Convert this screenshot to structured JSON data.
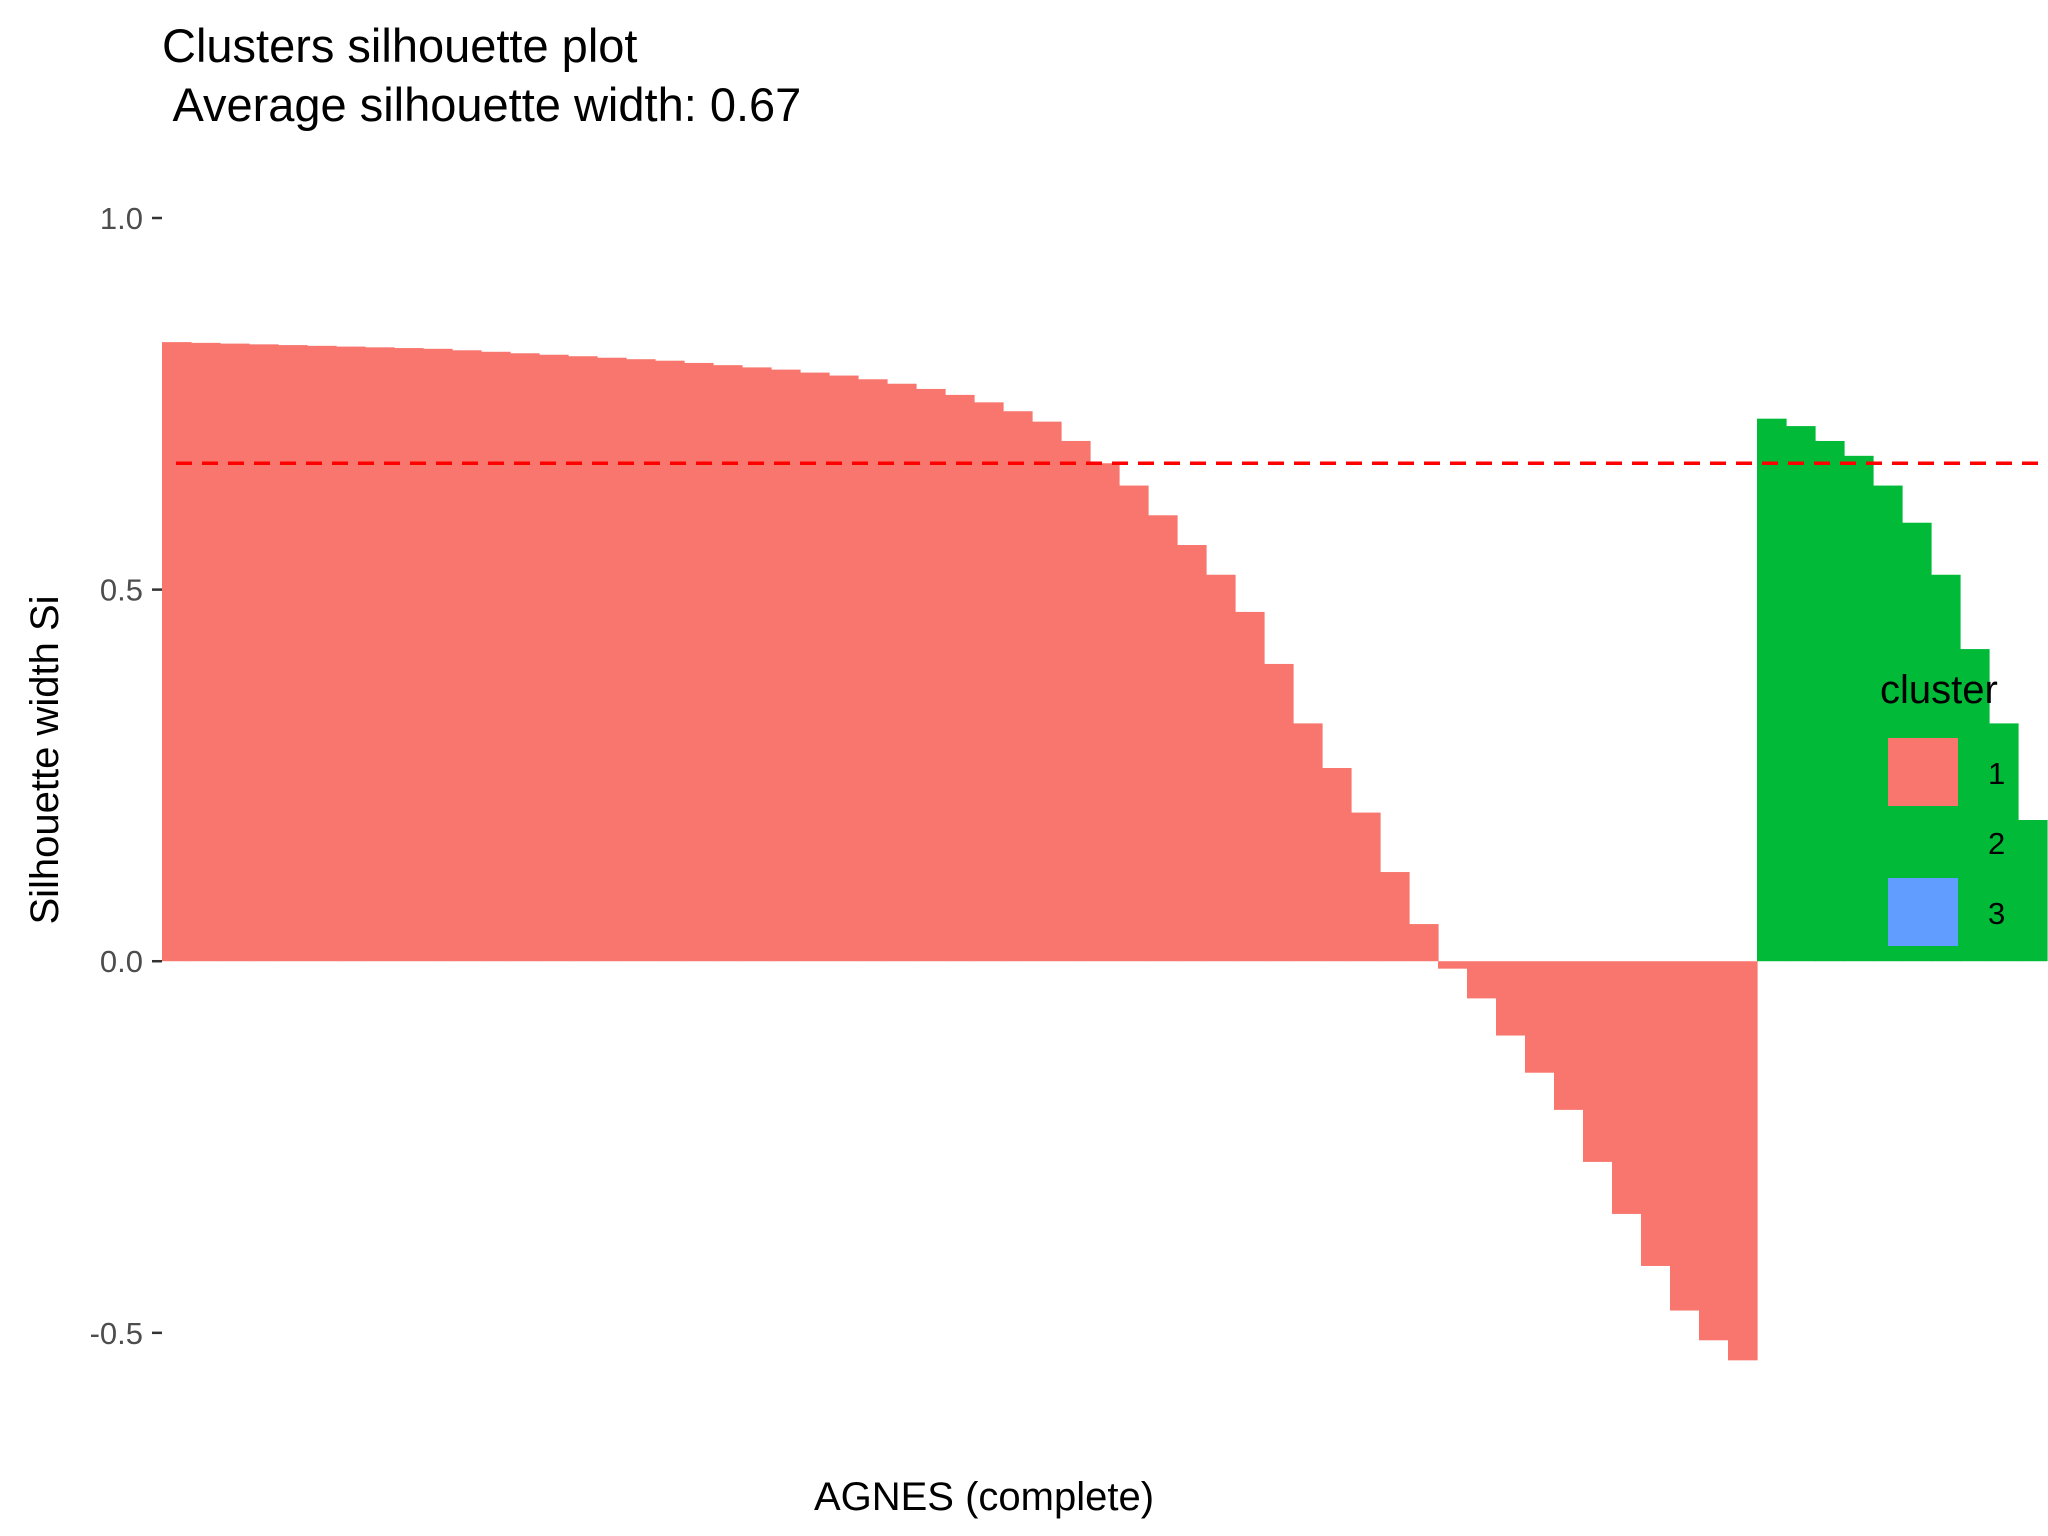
{
  "chart_data": {
    "type": "bar",
    "title": "Clusters silhouette plot",
    "subtitle": " Average silhouette width: 0.67",
    "xlabel": "AGNES (complete)",
    "ylabel": "Silhouette width Si",
    "ylim": [
      -0.55,
      1.0
    ],
    "yticks": [
      1.0,
      0.5,
      0.0,
      -0.5
    ],
    "ytick_labels": [
      "1.0",
      "0.5",
      "0.0",
      "-0.5"
    ],
    "average_line": {
      "value": 0.67,
      "color": "#ff0000",
      "style": "dashed"
    },
    "grid": false,
    "legend": {
      "title": "cluster",
      "placement": "right",
      "entries": [
        {
          "label": "1",
          "color": "#f8766d"
        },
        {
          "label": "2",
          "color": "#00ba38"
        },
        {
          "label": "3",
          "color": "#619cff"
        }
      ]
    },
    "series": [
      {
        "cluster": "1",
        "color": "#f8766d",
        "values": [
          0.833,
          0.832,
          0.831,
          0.83,
          0.829,
          0.828,
          0.827,
          0.826,
          0.825,
          0.824,
          0.822,
          0.82,
          0.818,
          0.816,
          0.814,
          0.812,
          0.81,
          0.808,
          0.805,
          0.802,
          0.799,
          0.796,
          0.792,
          0.788,
          0.783,
          0.777,
          0.77,
          0.762,
          0.752,
          0.74,
          0.726,
          0.7,
          0.67,
          0.64,
          0.6,
          0.56,
          0.52,
          0.47,
          0.4,
          0.32,
          0.26,
          0.2,
          0.12,
          0.05,
          -0.01,
          -0.05,
          -0.1,
          -0.15,
          -0.2,
          -0.27,
          -0.34,
          -0.41,
          -0.47,
          -0.51,
          -0.537
        ]
      },
      {
        "cluster": "2",
        "color": "#00ba38",
        "values": [
          0.73,
          0.72,
          0.7,
          0.68,
          0.64,
          0.59,
          0.52,
          0.42,
          0.32,
          0.19
        ]
      },
      {
        "cluster": "3",
        "color": "#619cff",
        "values": []
      }
    ]
  }
}
